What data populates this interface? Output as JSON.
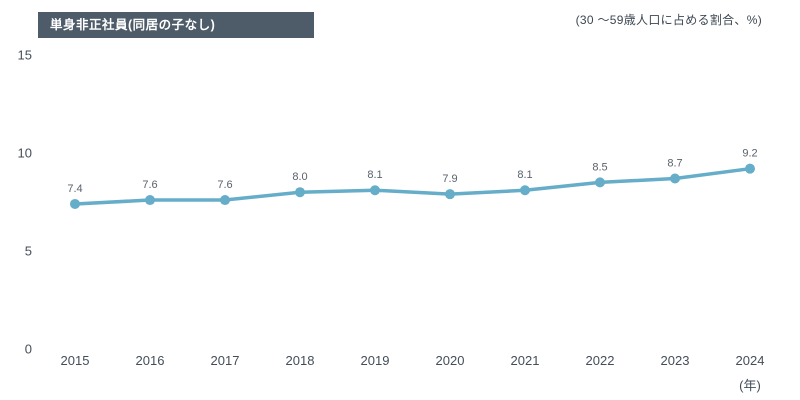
{
  "header": {
    "title": "単身非正社員(同居の子なし)",
    "unit_note": "(30 〜59歳人口に占める割合、%)"
  },
  "colors": {
    "title_box_bg": "#4e5c6a",
    "title_text": "#ffffff",
    "line": "#65adc8",
    "marker": "#65adc8",
    "tick_label": "#444e59",
    "data_label": "#5a626c",
    "note_text": "#3d4752"
  },
  "chart_data": {
    "type": "line",
    "title": "単身非正社員(同居の子なし)",
    "subtitle": "(30 〜59歳人口に占める割合、%)",
    "categories": [
      "2015",
      "2016",
      "2017",
      "2018",
      "2019",
      "2020",
      "2021",
      "2022",
      "2023",
      "2024"
    ],
    "series": [
      {
        "name": "単身非正社員(同居の子なし)",
        "values": [
          7.4,
          7.6,
          7.6,
          8.0,
          8.1,
          7.9,
          8.1,
          8.5,
          8.7,
          9.2
        ]
      }
    ],
    "data_labels": [
      "7.4",
      "7.6",
      "7.6",
      "8.0",
      "8.1",
      "7.9",
      "8.1",
      "8.5",
      "8.7",
      "9.2"
    ],
    "xlabel": "",
    "x_axis_unit": "(年)",
    "ylabel": "(30 〜59歳人口に占める割合、%)",
    "ylim": [
      0,
      15
    ],
    "yticks": [
      0,
      5,
      10,
      15
    ],
    "grid": false,
    "legend": "none",
    "markers": true
  }
}
